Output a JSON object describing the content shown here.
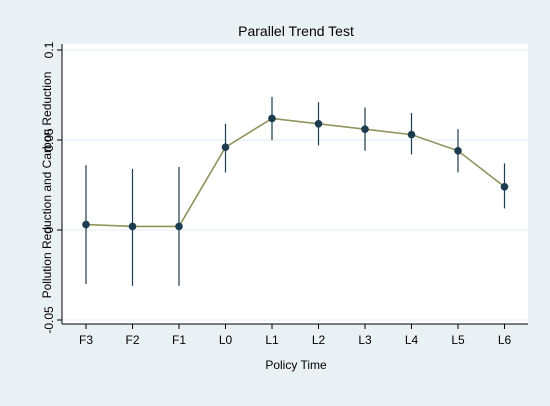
{
  "chart_data": {
    "type": "line",
    "title": "Parallel Trend Test",
    "xlabel": "Policy Time",
    "ylabel": "Pollution Reduction and Carbon Reduction",
    "categories": [
      "F3",
      "F2",
      "F1",
      "L0",
      "L1",
      "L2",
      "L3",
      "L4",
      "L5",
      "L6"
    ],
    "series": [
      {
        "estimate": [
          0.003,
          0.002,
          0.002,
          0.046,
          0.062,
          0.059,
          0.056,
          0.053,
          0.044,
          0.024
        ],
        "ci_low": [
          -0.03,
          -0.031,
          -0.031,
          0.032,
          0.05,
          0.047,
          0.044,
          0.042,
          0.032,
          0.012
        ],
        "ci_high": [
          0.036,
          0.034,
          0.035,
          0.059,
          0.074,
          0.071,
          0.068,
          0.065,
          0.056,
          0.037
        ]
      }
    ],
    "ylim": [
      -0.05,
      0.1
    ],
    "yticks": [
      -0.05,
      0,
      0.05,
      0.1
    ],
    "ytick_labels": [
      "-0.05",
      "0",
      "0.05",
      "0.1"
    ],
    "grid": true,
    "colors": {
      "outer_background": "#eaf1f4",
      "plot_background": "#ffffff",
      "line": "#90935c",
      "marker": "#1c3c50",
      "ci": "#1c3c50",
      "grid": "#eaf1f4"
    }
  }
}
